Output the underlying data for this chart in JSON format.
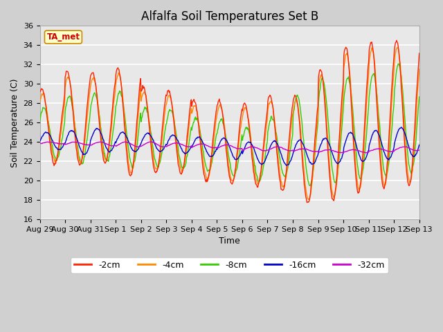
{
  "title": "Alfalfa Soil Temperatures Set B",
  "xlabel": "Time",
  "ylabel": "Soil Temperature (C)",
  "ylim": [
    16,
    36
  ],
  "yticks": [
    16,
    18,
    20,
    22,
    24,
    26,
    28,
    30,
    32,
    34,
    36
  ],
  "colors": {
    "-2cm": "#ff2200",
    "-4cm": "#ff8800",
    "-8cm": "#33cc00",
    "-16cm": "#0000cc",
    "-32cm": "#cc00cc"
  },
  "legend_labels": [
    "-2cm",
    "-4cm",
    "-8cm",
    "-16cm",
    "-32cm"
  ],
  "annotation_label": "TA_met",
  "annotation_color": "#cc0000",
  "annotation_bg": "#ffffcc",
  "plot_bg": "#e8e8e8",
  "fig_bg": "#d0d0d0",
  "n_days": 15,
  "pts_per_day": 48,
  "title_fontsize": 12,
  "label_fontsize": 9,
  "tick_fontsize": 8
}
